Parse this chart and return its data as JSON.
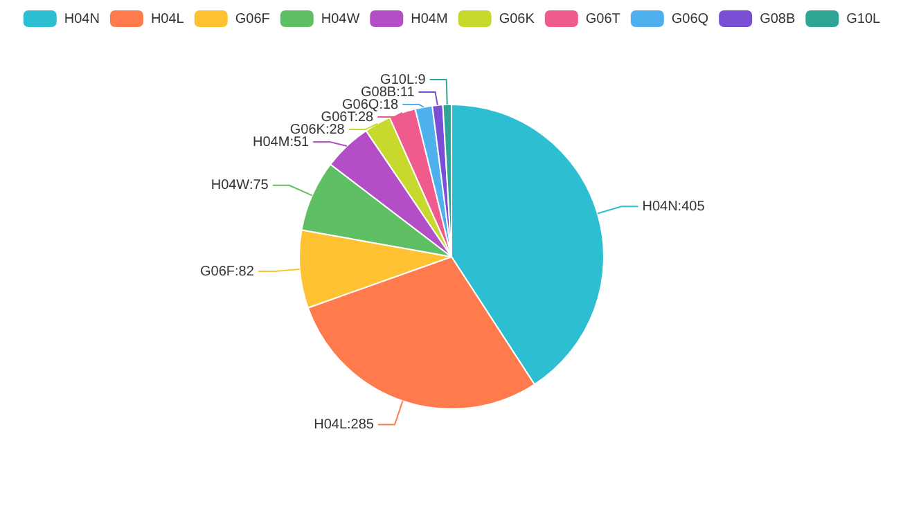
{
  "chart_data": {
    "type": "pie",
    "categories": [
      "H04N",
      "H04L",
      "G06F",
      "H04W",
      "H04M",
      "G06K",
      "G06T",
      "G06Q",
      "G08B",
      "G10L"
    ],
    "values": [
      405,
      285,
      82,
      75,
      51,
      28,
      28,
      18,
      11,
      9
    ],
    "colors": [
      "#2ebed1",
      "#ff7a4d",
      "#ffc233",
      "#5ebf65",
      "#b34ec6",
      "#c8d92e",
      "#ef5b8c",
      "#4fb0ee",
      "#7a4fd6",
      "#2fa595"
    ],
    "value_labels": [
      "H04N:405",
      "H04L:285",
      "G06F:82",
      "H04W:75",
      "H04M:51",
      "G06K:28",
      "G06T:28",
      "G06Q:18",
      "G08B:11",
      "G10L:9"
    ],
    "legend": "top"
  }
}
